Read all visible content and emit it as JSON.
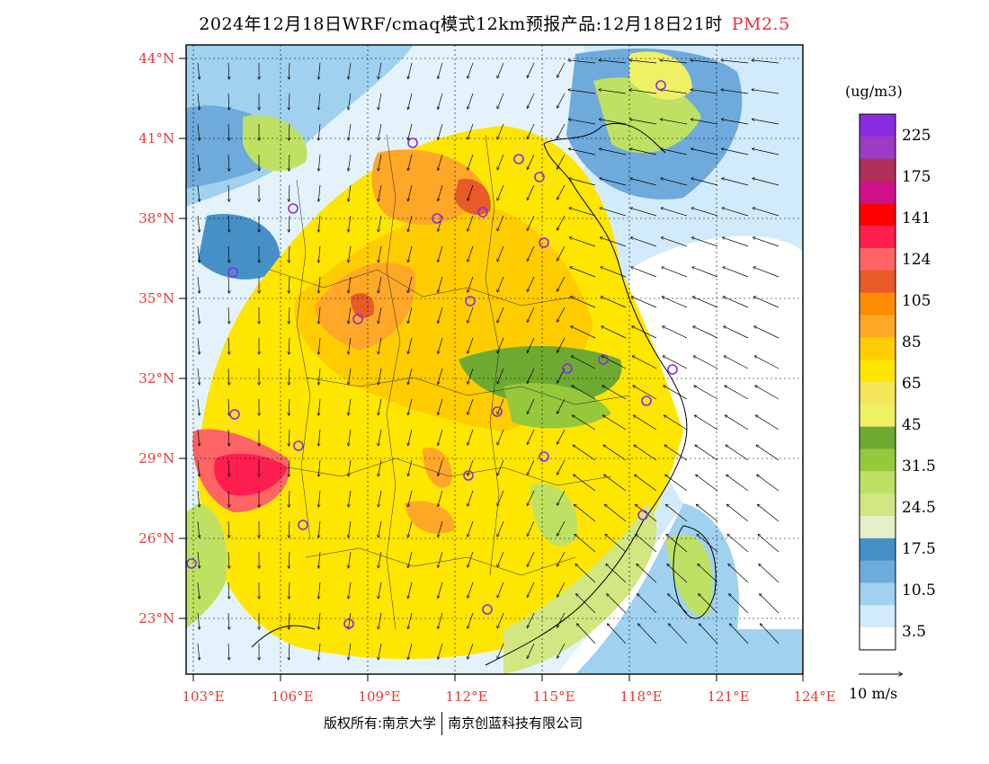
{
  "title": {
    "main": "2024年12月18日WRF/cmaq模式12km预报产品:12月18日21时",
    "pollutant": "PM2.5"
  },
  "map": {
    "lat_labels": [
      "44°N",
      "41°N",
      "38°N",
      "35°N",
      "32°N",
      "29°N",
      "26°N",
      "23°N"
    ],
    "lon_labels": [
      "103°E",
      "106°E",
      "109°E",
      "112°E",
      "115°E",
      "118°E",
      "121°E",
      "124°E"
    ],
    "extent": {
      "lon": [
        102.8,
        124.0
      ],
      "lat": [
        21.2,
        44.5
      ]
    },
    "station_color": "#8a2be2"
  },
  "colorbar": {
    "unit": "(ug/m3)",
    "colors": [
      "#8a2be2",
      "#9c3cc4",
      "#b0305a",
      "#d0108a",
      "#ff0000",
      "#ff1e50",
      "#ff6464",
      "#e85a28",
      "#ff8c00",
      "#ffa828",
      "#ffcc00",
      "#ffe600",
      "#f5e65a",
      "#f0f064",
      "#6eaa32",
      "#96c83c",
      "#bee164",
      "#d2e682",
      "#e6f0c8",
      "#4690c8",
      "#6eaadc",
      "#a0d2f0",
      "#d2ebfa",
      "#ffffff"
    ],
    "labels": [
      "225",
      "175",
      "141",
      "124",
      "105",
      "85",
      "65",
      "45",
      "31.5",
      "24.5",
      "17.5",
      "10.5",
      "3.5"
    ]
  },
  "vector_legend": {
    "label": "10 m/s"
  },
  "credits": {
    "left": "版权所有:南京大学",
    "right": "南京创蓝科技有限公司"
  }
}
